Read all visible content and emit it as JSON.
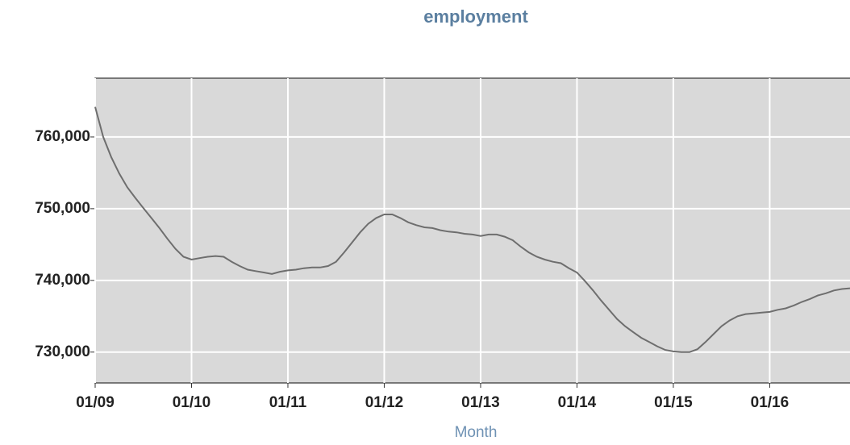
{
  "chart_data": {
    "type": "line",
    "title": "employment",
    "x_label": "Month",
    "x": [
      "2009-01",
      "2009-02",
      "2009-03",
      "2009-04",
      "2009-05",
      "2009-06",
      "2009-07",
      "2009-08",
      "2009-09",
      "2009-10",
      "2009-11",
      "2009-12",
      "2010-01",
      "2010-02",
      "2010-03",
      "2010-04",
      "2010-05",
      "2010-06",
      "2010-07",
      "2010-08",
      "2010-09",
      "2010-10",
      "2010-11",
      "2010-12",
      "2011-01",
      "2011-02",
      "2011-03",
      "2011-04",
      "2011-05",
      "2011-06",
      "2011-07",
      "2011-08",
      "2011-09",
      "2011-10",
      "2011-11",
      "2011-12",
      "2012-01",
      "2012-02",
      "2012-03",
      "2012-04",
      "2012-05",
      "2012-06",
      "2012-07",
      "2012-08",
      "2012-09",
      "2012-10",
      "2012-11",
      "2012-12",
      "2013-01",
      "2013-02",
      "2013-03",
      "2013-04",
      "2013-05",
      "2013-06",
      "2013-07",
      "2013-08",
      "2013-09",
      "2013-10",
      "2013-11",
      "2013-12",
      "2014-01",
      "2014-02",
      "2014-03",
      "2014-04",
      "2014-05",
      "2014-06",
      "2014-07",
      "2014-08",
      "2014-09",
      "2014-10",
      "2014-11",
      "2014-12",
      "2015-01",
      "2015-02",
      "2015-03",
      "2015-04",
      "2015-05",
      "2015-06",
      "2015-07",
      "2015-08",
      "2015-09",
      "2015-10",
      "2015-11",
      "2015-12",
      "2016-01",
      "2016-02",
      "2016-03",
      "2016-04",
      "2016-05",
      "2016-06",
      "2016-07",
      "2016-08",
      "2016-09",
      "2016-10",
      "2016-11"
    ],
    "series": [
      {
        "name": "employment",
        "color": "#6e6e6e",
        "values": [
          764200,
          760000,
          757200,
          754900,
          753000,
          751500,
          750100,
          748700,
          747300,
          745800,
          744400,
          743300,
          742900,
          743100,
          743300,
          743400,
          743300,
          742600,
          742000,
          741500,
          741300,
          741100,
          740900,
          741200,
          741400,
          741500,
          741700,
          741800,
          741800,
          742000,
          742600,
          743900,
          745300,
          746700,
          747900,
          748700,
          749200,
          749200,
          748700,
          748100,
          747700,
          747400,
          747300,
          747000,
          746800,
          746700,
          746500,
          746400,
          746200,
          746400,
          746400,
          746100,
          745600,
          744700,
          743900,
          743300,
          742900,
          742600,
          742400,
          741700,
          741100,
          739900,
          738600,
          737200,
          735900,
          734600,
          733600,
          732800,
          732000,
          731400,
          730800,
          730300,
          730100,
          730000,
          730000,
          730400,
          731400,
          732500,
          733600,
          734400,
          735000,
          735300,
          735400,
          735500,
          735600,
          735900,
          736100,
          736500,
          737000,
          737400,
          737900,
          738200,
          738600,
          738800,
          738900
        ]
      }
    ],
    "xlim": [
      "2009-01",
      "2016-11"
    ],
    "xticks": [
      {
        "value": "2009-01",
        "label": "01/09"
      },
      {
        "value": "2010-01",
        "label": "01/10"
      },
      {
        "value": "2011-01",
        "label": "01/11"
      },
      {
        "value": "2012-01",
        "label": "01/12"
      },
      {
        "value": "2013-01",
        "label": "01/13"
      },
      {
        "value": "2014-01",
        "label": "01/14"
      },
      {
        "value": "2015-01",
        "label": "01/15"
      },
      {
        "value": "2016-01",
        "label": "01/16"
      }
    ],
    "ylim": [
      725700,
      768200
    ],
    "yticks": [
      {
        "value": 730000,
        "label": "730,000"
      },
      {
        "value": 740000,
        "label": "740,000"
      },
      {
        "value": 750000,
        "label": "750,000"
      },
      {
        "value": 760000,
        "label": "760,000"
      }
    ],
    "grid": true
  }
}
